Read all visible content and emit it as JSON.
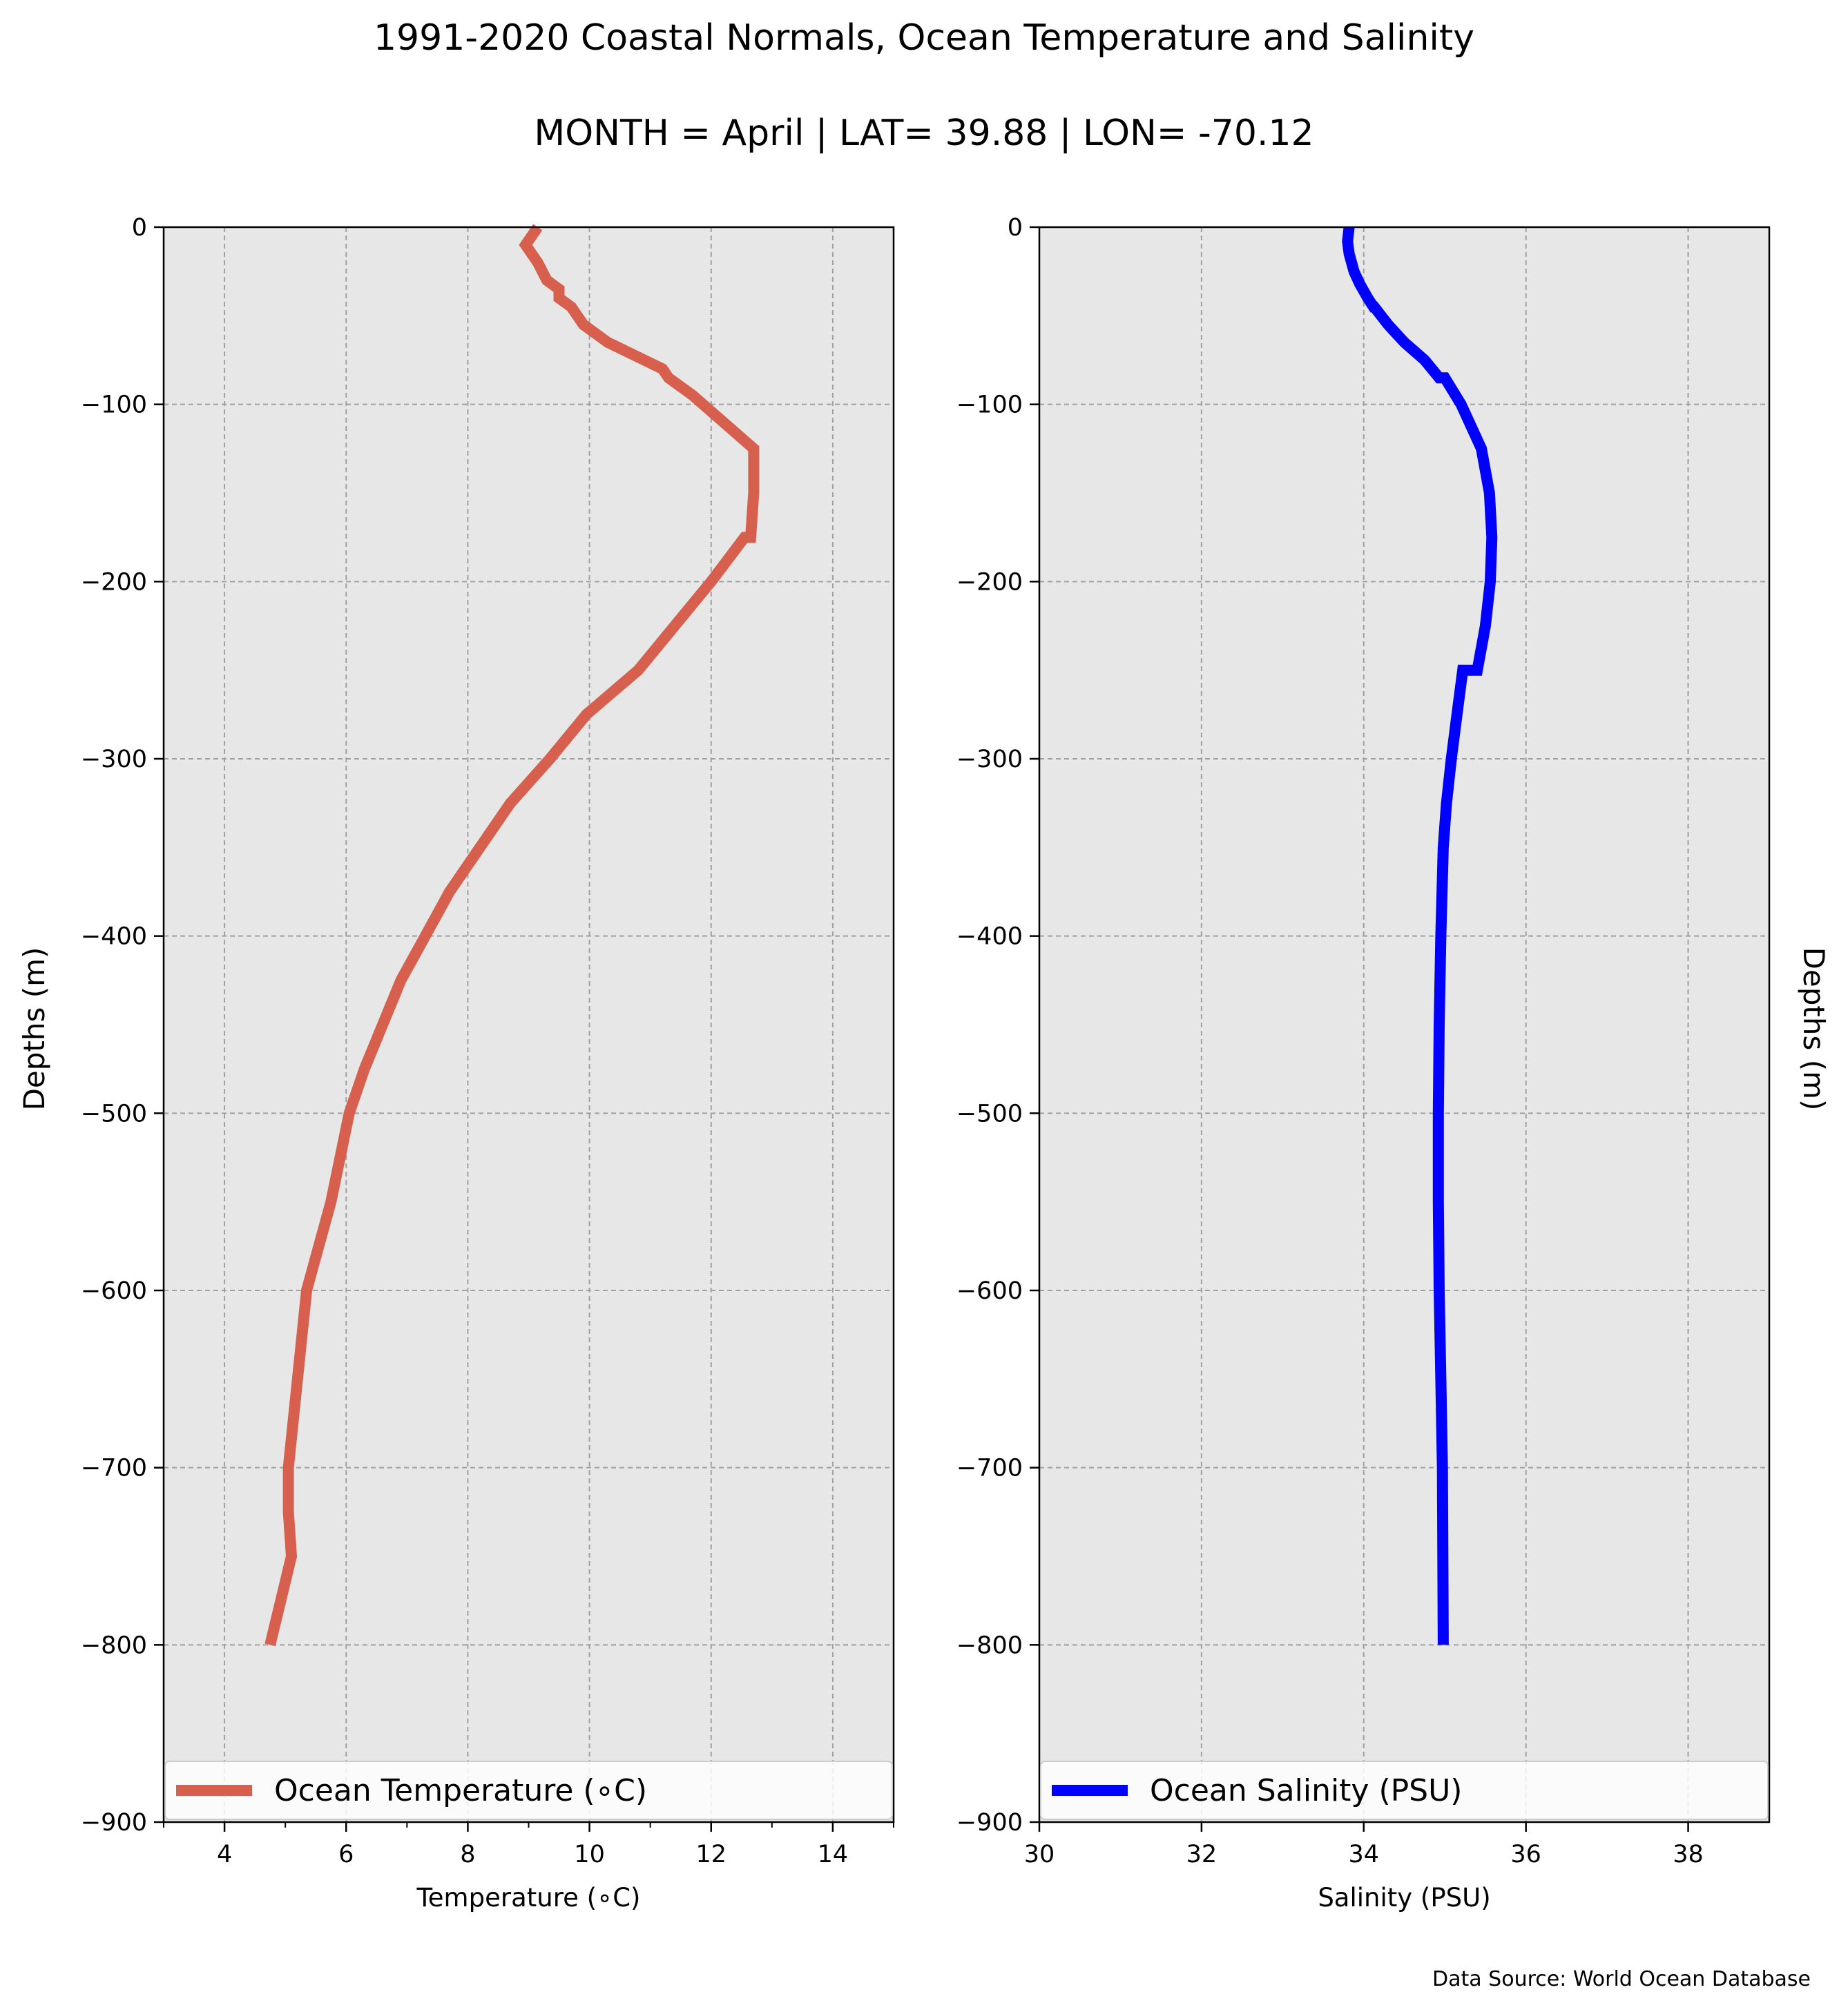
{
  "figure": {
    "title": "1991-2020 Coastal Normals, Ocean Temperature and Salinity",
    "subtitle": "MONTH = April | LAT= 39.88 | LON= -70.12",
    "ylabel_left": "Depths (m)",
    "ylabel_right": "Depths (m)",
    "footnote": "Data Source: World Ocean Database"
  },
  "colors": {
    "panel_background": "#e8e7e7",
    "grid": "#a0a0a0",
    "temperature_line": "#d6604d",
    "salinity_line": "#0000ff"
  },
  "chart_data": [
    {
      "type": "line",
      "xlabel": "Temperature (∘C)",
      "xlim": [
        3,
        15
      ],
      "ylim": [
        -900,
        0
      ],
      "xticks": [
        4,
        6,
        8,
        10,
        12,
        14
      ],
      "yticks": [
        0,
        -100,
        -200,
        -300,
        -400,
        -500,
        -600,
        -700,
        -800,
        -900
      ],
      "grid": true,
      "legend_position": "bottom",
      "series": [
        {
          "name": "Ocean Temperature (∘C)",
          "color": "#d6604d",
          "x": [
            9.15,
            8.95,
            9.15,
            9.3,
            9.5,
            9.5,
            9.7,
            9.9,
            10.3,
            11.2,
            11.3,
            11.3,
            11.7,
            12.7,
            12.7,
            12.65,
            12.55,
            12.0,
            11.4,
            10.8,
            9.95,
            9.35,
            8.7,
            8.2,
            7.7,
            7.3,
            6.9,
            6.6,
            6.3,
            6.05,
            5.75,
            5.55,
            5.35,
            5.2,
            5.05,
            5.05,
            5.1,
            4.75
          ],
          "y": [
            0,
            -10,
            -20,
            -30,
            -35,
            -40,
            -45,
            -55,
            -65,
            -80,
            -85,
            -85,
            -95,
            -125,
            -150,
            -175,
            -175,
            -200,
            -225,
            -250,
            -275,
            -300,
            -325,
            -350,
            -375,
            -400,
            -425,
            -450,
            -475,
            -500,
            -550,
            -575,
            -600,
            -650,
            -700,
            -725,
            -750,
            -800
          ]
        }
      ]
    },
    {
      "type": "line",
      "xlabel": "Salinity (PSU)",
      "xlim": [
        30,
        39
      ],
      "ylim": [
        -900,
        0
      ],
      "xticks": [
        30,
        32,
        34,
        36,
        38
      ],
      "yticks": [
        0,
        -100,
        -200,
        -300,
        -400,
        -500,
        -600,
        -700,
        -800,
        -900
      ],
      "grid": true,
      "legend_position": "bottom",
      "series": [
        {
          "name": "Ocean Salinity (PSU)",
          "color": "#0000ff",
          "x": [
            33.82,
            33.8,
            33.82,
            33.88,
            33.95,
            34.05,
            34.12,
            34.13,
            34.3,
            34.5,
            34.75,
            34.93,
            35.0,
            35.2,
            35.45,
            35.55,
            35.58,
            35.56,
            35.5,
            35.4,
            35.22,
            35.15,
            35.08,
            35.02,
            34.98,
            34.95,
            34.93,
            34.92,
            34.92,
            34.93,
            34.95,
            34.97,
            34.98
          ],
          "y": [
            0,
            -8,
            -15,
            -25,
            -32,
            -40,
            -45,
            -45,
            -55,
            -65,
            -75,
            -85,
            -85,
            -100,
            -125,
            -150,
            -175,
            -200,
            -225,
            -250,
            -250,
            -275,
            -300,
            -325,
            -350,
            -400,
            -450,
            -500,
            -550,
            -600,
            -650,
            -700,
            -800
          ]
        }
      ]
    }
  ]
}
